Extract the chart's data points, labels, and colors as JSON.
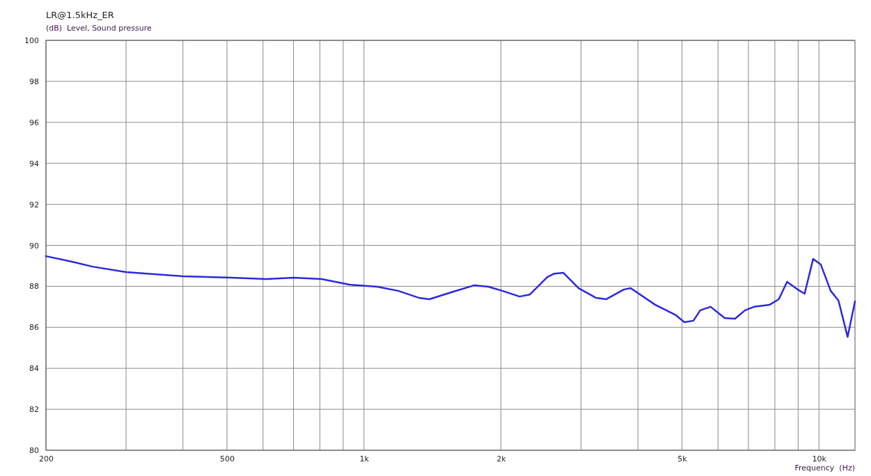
{
  "chart_data": {
    "type": "line",
    "title": "LR@1.5kHz_ER",
    "ylabel": "(dB)  Level, Sound pressure",
    "xlabel": "Frequency  (Hz)",
    "log": "x",
    "xlim": [
      200,
      12000
    ],
    "xticks": [
      200,
      {
        "value": 300,
        "label": null
      },
      {
        "value": 400,
        "label": null
      },
      500,
      {
        "value": 600,
        "label": null
      },
      {
        "value": 700,
        "label": null
      },
      {
        "value": 800,
        "label": null
      },
      {
        "value": 900,
        "label": null
      },
      {
        "value": 1000,
        "label": "1k"
      },
      {
        "value": 2000,
        "label": "2k"
      },
      {
        "value": 3000,
        "label": null
      },
      {
        "value": 4000,
        "label": null
      },
      {
        "value": 5000,
        "label": "5k"
      },
      {
        "value": 6000,
        "label": null
      },
      {
        "value": 7000,
        "label": null
      },
      {
        "value": 8000,
        "label": null
      },
      {
        "value": 9000,
        "label": null
      },
      {
        "value": 10000,
        "label": "10k"
      }
    ],
    "ylim": [
      80,
      100
    ],
    "yticks": [
      80,
      82,
      84,
      86,
      88,
      90,
      92,
      94,
      96,
      98,
      100
    ],
    "grid": true,
    "series": [
      {
        "color": "#2a2adc",
        "x": [
          200,
          228,
          253,
          300,
          400,
          511,
          610,
          701,
          807,
          929,
          1069,
          1188,
          1320,
          1392,
          1574,
          1749,
          1877,
          2013,
          2198,
          2315,
          2529,
          2620,
          2742,
          2963,
          3233,
          3410,
          3722,
          3855,
          4364,
          4850,
          5060,
          5296,
          5485,
          5780,
          6205,
          6540,
          6880,
          7200,
          7790,
          8160,
          8510,
          8980,
          9300,
          9710,
          10090,
          10610,
          11040,
          11560,
          12000
        ],
        "values": [
          89.47,
          89.2,
          88.96,
          88.69,
          88.49,
          88.42,
          88.35,
          88.42,
          88.35,
          88.08,
          87.98,
          87.78,
          87.44,
          87.37,
          87.74,
          88.05,
          87.98,
          87.78,
          87.5,
          87.6,
          88.45,
          88.62,
          88.66,
          87.91,
          87.44,
          87.37,
          87.84,
          87.91,
          87.1,
          86.59,
          86.25,
          86.32,
          86.83,
          87.0,
          86.45,
          86.42,
          86.83,
          87.0,
          87.1,
          87.37,
          88.22,
          87.84,
          87.64,
          89.34,
          89.07,
          87.78,
          87.3,
          85.53,
          87.27
        ]
      }
    ]
  }
}
